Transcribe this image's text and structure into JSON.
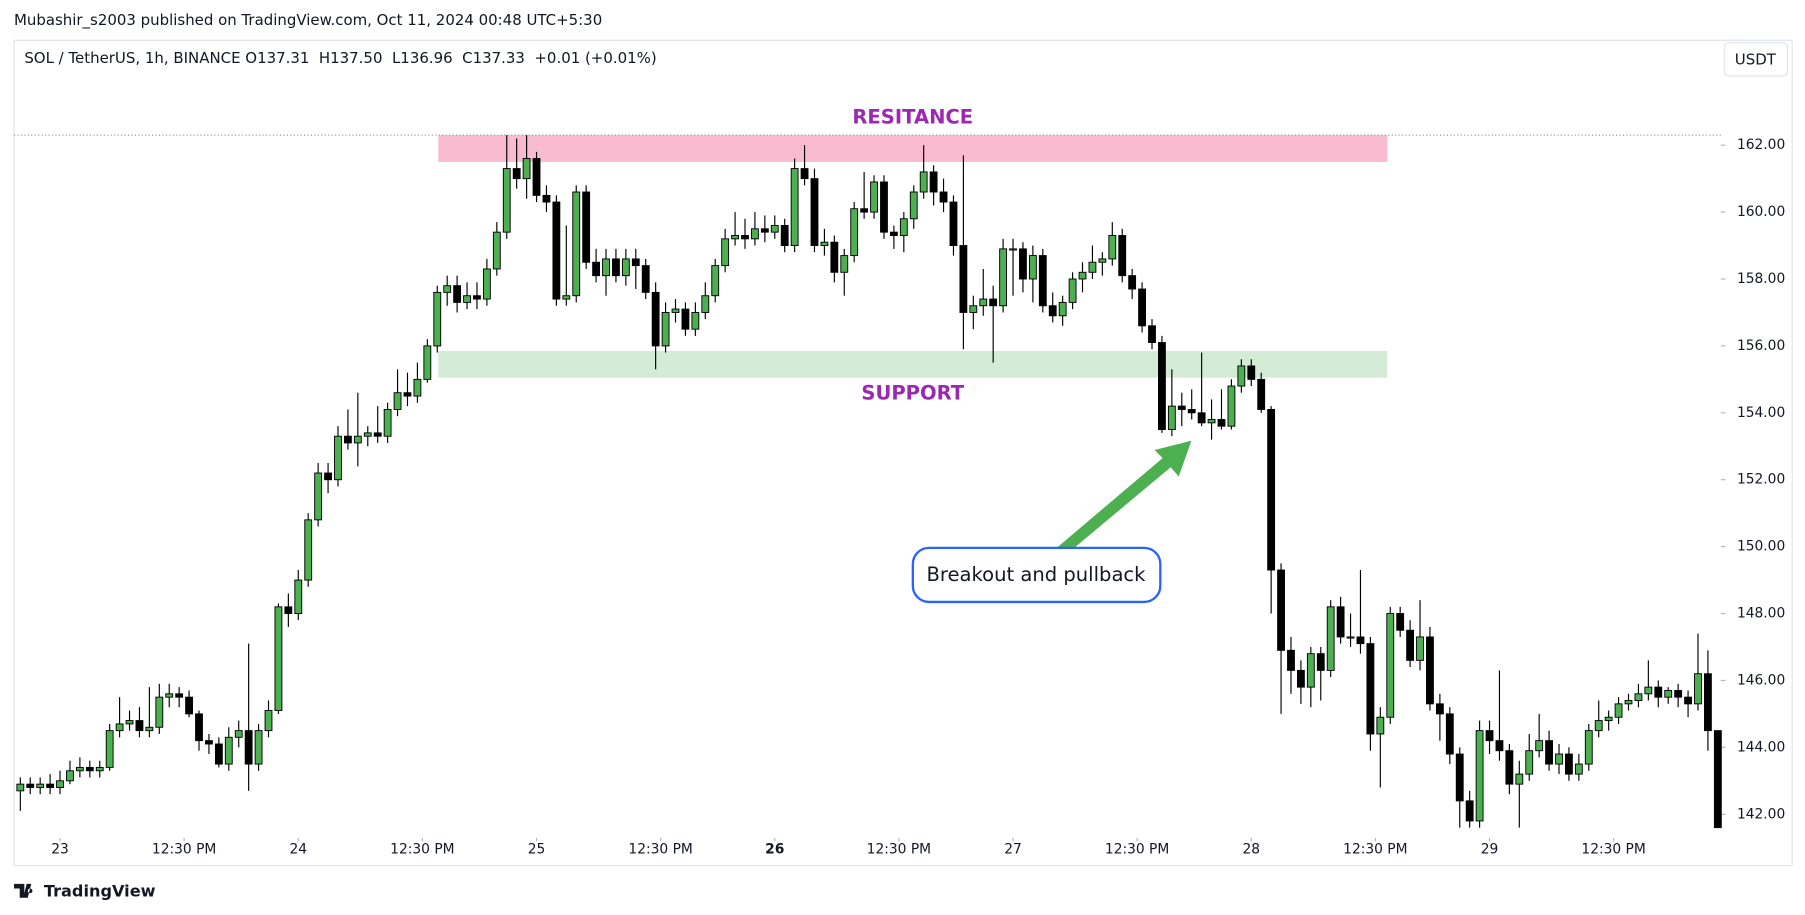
{
  "header": {
    "published": "Mubashir_s2003 published on TradingView.com, Oct 11, 2024 00:48 UTC+5:30",
    "symbol": "SOL / TetherUS, 1h, BINANCE",
    "ohlc": "O137.31  H137.50  L136.96  C137.33  +0.01 (+0.01%)",
    "currency": "USDT"
  },
  "footer": {
    "brand": "TradingView"
  },
  "chart_data": {
    "type": "candlestick",
    "x": [
      -4,
      -3,
      -2,
      -1,
      0,
      1,
      2,
      3,
      4,
      5,
      6,
      7,
      8,
      9,
      10,
      11,
      12,
      13,
      14,
      15,
      16,
      17,
      18,
      19,
      20,
      21,
      22,
      23,
      24,
      25,
      26,
      27,
      28,
      29,
      30,
      31,
      32,
      33,
      34,
      35,
      36,
      37,
      38,
      39,
      40,
      41,
      42,
      43,
      44,
      45,
      46,
      47,
      48,
      49,
      50,
      51,
      52,
      53,
      54,
      55,
      56,
      57,
      58,
      59,
      60,
      61,
      62,
      63,
      64,
      65,
      66,
      67,
      68,
      69,
      70,
      71,
      72,
      73,
      74,
      75,
      76,
      77,
      78,
      79,
      80,
      81,
      82,
      83,
      84,
      85,
      86,
      87,
      88,
      89,
      90,
      91,
      92,
      93,
      94,
      95,
      96,
      97,
      98,
      99,
      100,
      101,
      102,
      103,
      104,
      105,
      106,
      107,
      108,
      109,
      110,
      111,
      112,
      113,
      114,
      115,
      116,
      117,
      118,
      119,
      120,
      121,
      122,
      123,
      124,
      125,
      126,
      127,
      128,
      129,
      130,
      131,
      132,
      133,
      134,
      135,
      136,
      137,
      138,
      139,
      140,
      141,
      142,
      143,
      144,
      145,
      146,
      147,
      148,
      149,
      150,
      151,
      152,
      153,
      154,
      155,
      156,
      157,
      158,
      159,
      160,
      161,
      162,
      163,
      164,
      165,
      166,
      167
    ],
    "ohlc": [
      [
        142.7,
        143.1,
        142.1,
        142.9
      ],
      [
        142.9,
        143.1,
        142.6,
        142.8
      ],
      [
        142.8,
        143.1,
        142.6,
        142.9
      ],
      [
        142.9,
        143.2,
        142.6,
        142.8
      ],
      [
        142.8,
        143.3,
        142.6,
        143.0
      ],
      [
        143.0,
        143.6,
        142.9,
        143.3
      ],
      [
        143.3,
        143.7,
        143.1,
        143.4
      ],
      [
        143.4,
        143.6,
        143.1,
        143.3
      ],
      [
        143.3,
        143.6,
        143.1,
        143.4
      ],
      [
        143.4,
        144.7,
        143.3,
        144.5
      ],
      [
        144.5,
        145.5,
        144.3,
        144.7
      ],
      [
        144.7,
        145.1,
        144.5,
        144.8
      ],
      [
        144.8,
        145.2,
        144.3,
        144.5
      ],
      [
        144.5,
        145.8,
        144.3,
        144.6
      ],
      [
        144.6,
        145.9,
        144.4,
        145.5
      ],
      [
        145.5,
        145.9,
        145.2,
        145.6
      ],
      [
        145.6,
        145.8,
        145.2,
        145.5
      ],
      [
        145.5,
        145.7,
        144.9,
        145.0
      ],
      [
        145.0,
        145.1,
        143.9,
        144.2
      ],
      [
        144.2,
        144.4,
        143.8,
        144.1
      ],
      [
        144.1,
        144.3,
        143.4,
        143.5
      ],
      [
        143.5,
        144.6,
        143.3,
        144.3
      ],
      [
        144.3,
        144.8,
        144.0,
        144.5
      ],
      [
        144.5,
        147.1,
        142.7,
        143.5
      ],
      [
        143.5,
        144.7,
        143.3,
        144.5
      ],
      [
        144.5,
        145.4,
        144.3,
        145.1
      ],
      [
        145.1,
        148.3,
        145.0,
        148.2
      ],
      [
        148.2,
        148.6,
        147.6,
        148.0
      ],
      [
        148.0,
        149.3,
        147.8,
        149.0
      ],
      [
        149.0,
        151.0,
        148.8,
        150.8
      ],
      [
        150.8,
        152.5,
        150.6,
        152.2
      ],
      [
        152.2,
        152.5,
        151.6,
        152.0
      ],
      [
        152.0,
        153.6,
        151.8,
        153.3
      ],
      [
        153.3,
        154.1,
        152.9,
        153.1
      ],
      [
        153.1,
        154.6,
        152.4,
        153.3
      ],
      [
        153.3,
        153.6,
        153.0,
        153.4
      ],
      [
        153.4,
        154.2,
        153.1,
        153.3
      ],
      [
        153.3,
        154.3,
        153.1,
        154.1
      ],
      [
        154.1,
        155.3,
        153.9,
        154.6
      ],
      [
        154.6,
        155.2,
        154.2,
        154.5
      ],
      [
        154.5,
        155.5,
        154.3,
        155.0
      ],
      [
        155.0,
        156.2,
        154.9,
        156.0
      ],
      [
        156.0,
        157.8,
        155.8,
        157.6
      ],
      [
        157.6,
        158.1,
        157.2,
        157.8
      ],
      [
        157.8,
        158.1,
        157.0,
        157.3
      ],
      [
        157.3,
        157.9,
        157.1,
        157.5
      ],
      [
        157.5,
        157.9,
        157.1,
        157.4
      ],
      [
        157.4,
        158.6,
        157.2,
        158.3
      ],
      [
        158.3,
        159.7,
        158.1,
        159.4
      ],
      [
        159.4,
        162.3,
        159.2,
        161.3
      ],
      [
        161.3,
        162.2,
        160.7,
        161.0
      ],
      [
        161.0,
        162.3,
        160.4,
        161.6
      ],
      [
        161.6,
        161.8,
        160.3,
        160.5
      ],
      [
        160.5,
        160.8,
        160.0,
        160.3
      ],
      [
        160.3,
        160.5,
        157.2,
        157.4
      ],
      [
        157.4,
        159.6,
        157.2,
        157.5
      ],
      [
        157.5,
        160.8,
        157.3,
        160.6
      ],
      [
        160.6,
        160.8,
        158.3,
        158.5
      ],
      [
        158.5,
        158.9,
        157.9,
        158.1
      ],
      [
        158.1,
        158.9,
        157.5,
        158.6
      ],
      [
        158.6,
        158.9,
        157.9,
        158.1
      ],
      [
        158.1,
        158.9,
        157.8,
        158.6
      ],
      [
        158.6,
        158.9,
        157.7,
        158.4
      ],
      [
        158.4,
        158.6,
        157.4,
        157.6
      ],
      [
        157.6,
        157.9,
        155.3,
        156.0
      ],
      [
        156.0,
        157.3,
        155.8,
        157.0
      ],
      [
        157.0,
        157.4,
        156.7,
        157.1
      ],
      [
        157.1,
        157.3,
        156.3,
        156.5
      ],
      [
        156.5,
        157.3,
        156.3,
        157.0
      ],
      [
        157.0,
        157.9,
        156.8,
        157.5
      ],
      [
        157.5,
        158.6,
        157.3,
        158.4
      ],
      [
        158.4,
        159.5,
        158.2,
        159.2
      ],
      [
        159.2,
        160.0,
        159.0,
        159.3
      ],
      [
        159.3,
        159.8,
        158.9,
        159.2
      ],
      [
        159.2,
        160.0,
        159.0,
        159.5
      ],
      [
        159.5,
        159.9,
        159.1,
        159.4
      ],
      [
        159.4,
        159.9,
        159.2,
        159.6
      ],
      [
        159.6,
        159.8,
        158.8,
        159.0
      ],
      [
        159.0,
        161.6,
        158.8,
        161.3
      ],
      [
        161.3,
        162.0,
        160.8,
        161.0
      ],
      [
        161.0,
        161.3,
        158.8,
        159.0
      ],
      [
        159.0,
        159.5,
        158.7,
        159.1
      ],
      [
        159.1,
        159.3,
        157.9,
        158.2
      ],
      [
        158.2,
        158.9,
        157.5,
        158.7
      ],
      [
        158.7,
        160.3,
        158.5,
        160.1
      ],
      [
        160.1,
        161.2,
        159.8,
        160.0
      ],
      [
        160.0,
        161.1,
        159.8,
        160.9
      ],
      [
        160.9,
        161.1,
        159.2,
        159.4
      ],
      [
        159.4,
        159.6,
        158.9,
        159.3
      ],
      [
        159.3,
        160.0,
        158.8,
        159.8
      ],
      [
        159.8,
        160.8,
        159.5,
        160.6
      ],
      [
        160.6,
        162.0,
        160.4,
        161.2
      ],
      [
        161.2,
        161.4,
        160.2,
        160.6
      ],
      [
        160.6,
        161.0,
        160.0,
        160.3
      ],
      [
        160.3,
        160.5,
        158.7,
        159.0
      ],
      [
        159.0,
        161.7,
        155.9,
        157.0
      ],
      [
        157.0,
        157.5,
        156.5,
        157.2
      ],
      [
        157.2,
        158.3,
        156.9,
        157.4
      ],
      [
        157.4,
        157.8,
        155.5,
        157.2
      ],
      [
        157.2,
        159.2,
        157.0,
        158.9
      ],
      [
        158.9,
        159.2,
        157.5,
        158.9
      ],
      [
        158.9,
        159.1,
        157.6,
        158.0
      ],
      [
        158.0,
        159.0,
        157.3,
        158.7
      ],
      [
        158.7,
        158.9,
        157.0,
        157.2
      ],
      [
        157.2,
        157.6,
        156.7,
        156.9
      ],
      [
        156.9,
        157.5,
        156.6,
        157.3
      ],
      [
        157.3,
        158.2,
        157.1,
        158.0
      ],
      [
        158.0,
        158.5,
        157.6,
        158.2
      ],
      [
        158.2,
        159.0,
        158.0,
        158.5
      ],
      [
        158.5,
        158.8,
        158.1,
        158.6
      ],
      [
        158.6,
        159.7,
        158.4,
        159.3
      ],
      [
        159.3,
        159.5,
        157.9,
        158.1
      ],
      [
        158.1,
        158.3,
        157.4,
        157.7
      ],
      [
        157.7,
        157.9,
        156.4,
        156.6
      ],
      [
        156.6,
        156.8,
        155.9,
        156.1
      ],
      [
        156.1,
        156.3,
        153.4,
        153.5
      ],
      [
        153.5,
        155.3,
        153.3,
        154.2
      ],
      [
        154.2,
        154.6,
        153.6,
        154.1
      ],
      [
        154.1,
        154.7,
        153.8,
        154.0
      ],
      [
        154.0,
        155.8,
        153.6,
        153.7
      ],
      [
        153.7,
        154.4,
        153.2,
        153.8
      ],
      [
        153.8,
        154.7,
        153.5,
        153.6
      ],
      [
        153.6,
        155.0,
        153.5,
        154.8
      ],
      [
        154.8,
        155.6,
        154.6,
        155.4
      ],
      [
        155.4,
        155.6,
        154.8,
        155.0
      ],
      [
        155.0,
        155.2,
        154.0,
        154.1
      ],
      [
        154.1,
        154.2,
        148.0,
        149.3
      ],
      [
        149.3,
        149.5,
        145.0,
        146.9
      ],
      [
        146.9,
        147.3,
        145.6,
        146.3
      ],
      [
        146.3,
        146.6,
        145.3,
        145.8
      ],
      [
        145.8,
        147.0,
        145.2,
        146.8
      ],
      [
        146.8,
        147.0,
        145.4,
        146.3
      ],
      [
        146.3,
        148.4,
        146.1,
        148.2
      ],
      [
        148.2,
        148.5,
        147.1,
        147.3
      ],
      [
        147.3,
        148.0,
        147.0,
        147.3
      ],
      [
        147.3,
        149.3,
        146.8,
        147.1
      ],
      [
        147.1,
        147.3,
        143.9,
        144.4
      ],
      [
        144.4,
        145.2,
        142.8,
        144.9
      ],
      [
        144.9,
        148.2,
        144.7,
        148.0
      ],
      [
        148.0,
        148.2,
        147.3,
        147.5
      ],
      [
        147.5,
        147.8,
        146.4,
        146.6
      ],
      [
        146.6,
        148.4,
        146.3,
        147.3
      ],
      [
        147.3,
        147.6,
        145.1,
        145.3
      ],
      [
        145.3,
        145.6,
        144.2,
        145.0
      ],
      [
        145.0,
        145.2,
        143.5,
        143.8
      ],
      [
        143.8,
        144.0,
        141.6,
        142.4
      ],
      [
        142.4,
        142.7,
        141.6,
        141.8
      ],
      [
        141.8,
        144.8,
        141.6,
        144.5
      ],
      [
        144.5,
        144.8,
        143.8,
        144.2
      ],
      [
        144.2,
        146.3,
        143.6,
        143.9
      ],
      [
        143.9,
        144.1,
        142.6,
        142.9
      ],
      [
        142.9,
        143.6,
        141.6,
        143.2
      ],
      [
        143.2,
        144.4,
        143.0,
        143.9
      ],
      [
        143.9,
        145.0,
        143.7,
        144.2
      ],
      [
        144.2,
        144.5,
        143.3,
        143.5
      ],
      [
        143.5,
        144.1,
        143.2,
        143.8
      ],
      [
        143.8,
        144.0,
        143.0,
        143.2
      ],
      [
        143.2,
        143.8,
        143.0,
        143.5
      ],
      [
        143.5,
        144.7,
        143.3,
        144.5
      ],
      [
        144.5,
        145.4,
        144.3,
        144.8
      ],
      [
        144.8,
        145.1,
        144.5,
        144.9
      ],
      [
        144.9,
        145.5,
        144.7,
        145.3
      ],
      [
        145.3,
        145.6,
        145.1,
        145.4
      ],
      [
        145.4,
        145.9,
        145.2,
        145.6
      ],
      [
        145.6,
        146.6,
        145.4,
        145.8
      ],
      [
        145.8,
        146.0,
        145.2,
        145.5
      ],
      [
        145.5,
        145.8,
        145.3,
        145.7
      ],
      [
        145.7,
        145.9,
        145.2,
        145.5
      ],
      [
        145.5,
        145.7,
        144.9,
        145.3
      ],
      [
        145.3,
        147.4,
        145.1,
        146.2
      ],
      [
        146.2,
        146.9,
        143.9,
        144.5
      ],
      [
        144.5,
        144.5,
        141.6,
        141.6
      ]
    ],
    "up_color": "#4caf50",
    "down_color": "#000000",
    "wick_color": "#000000",
    "xlim": [
      -4.64,
      167.3
    ],
    "xticks": [
      {
        "value": 0,
        "label": "23"
      },
      {
        "value": 12.5,
        "label": "12:30 PM"
      },
      {
        "value": 24,
        "label": "24"
      },
      {
        "value": 36.5,
        "label": "12:30 PM"
      },
      {
        "value": 48,
        "label": "25"
      },
      {
        "value": 60.5,
        "label": "12:30 PM"
      },
      {
        "value": 72,
        "label": "26",
        "bold": true
      },
      {
        "value": 84.5,
        "label": "12:30 PM"
      },
      {
        "value": 96,
        "label": "27"
      },
      {
        "value": 108.5,
        "label": "12:30 PM"
      },
      {
        "value": 120,
        "label": "28"
      },
      {
        "value": 132.5,
        "label": "12:30 PM"
      },
      {
        "value": 144,
        "label": "29"
      },
      {
        "value": 156.5,
        "label": "12:30 PM"
      }
    ],
    "ylim": [
      141.5,
      164.0
    ],
    "yticks": [
      {
        "value": 142,
        "label": "142.00"
      },
      {
        "value": 144,
        "label": "144.00"
      },
      {
        "value": 146,
        "label": "146.00"
      },
      {
        "value": 148,
        "label": "148.00"
      },
      {
        "value": 150,
        "label": "150.00"
      },
      {
        "value": 152,
        "label": "152.00"
      },
      {
        "value": 154,
        "label": "154.00"
      },
      {
        "value": 156,
        "label": "156.00"
      },
      {
        "value": 158,
        "label": "158.00"
      },
      {
        "value": 160,
        "label": "160.00"
      },
      {
        "value": 162,
        "label": "162.00"
      }
    ],
    "high_line": 162.3,
    "zones": [
      {
        "label": "RESITANCE",
        "label_side": "top",
        "x": [
          38.1,
          133.7
        ],
        "y": [
          161.5,
          162.3
        ],
        "color": "#f8bbd0"
      },
      {
        "label": "SUPPORT",
        "label_side": "bottom",
        "x": [
          38.1,
          133.7
        ],
        "y": [
          155.05,
          155.85
        ],
        "color": "#d4ecd5"
      }
    ],
    "zone_label_color": "#9c27b0",
    "annotation": {
      "text": "Breakout and pullback",
      "border_color": "#2962ff",
      "arrow_color": "#4caf50"
    }
  }
}
